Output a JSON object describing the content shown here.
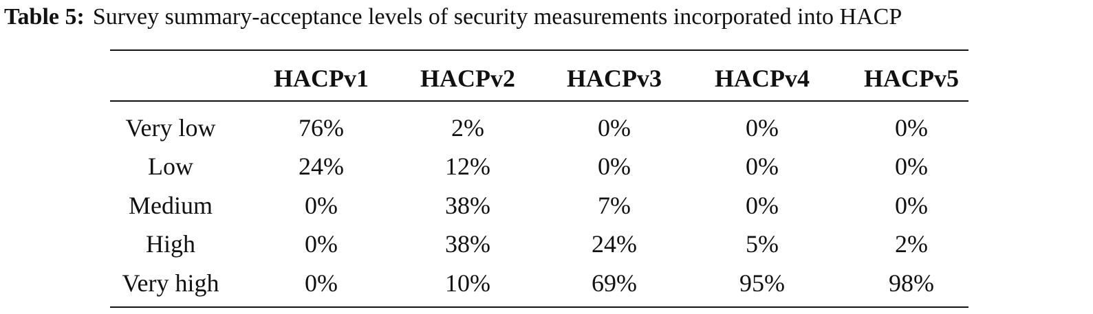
{
  "caption": {
    "label": "Table 5:",
    "text": "Survey summary-acceptance levels of security measurements incorporated into HACP"
  },
  "table": {
    "columns": [
      "HACPv1",
      "HACPv2",
      "HACPv3",
      "HACPv4",
      "HACPv5"
    ],
    "rows": [
      {
        "label": "Very low",
        "cells": [
          "76%",
          "2%",
          "0%",
          "0%",
          "0%"
        ]
      },
      {
        "label": "Low",
        "cells": [
          "24%",
          "12%",
          "0%",
          "0%",
          "0%"
        ]
      },
      {
        "label": "Medium",
        "cells": [
          "0%",
          "38%",
          "7%",
          "0%",
          "0%"
        ]
      },
      {
        "label": "High",
        "cells": [
          "0%",
          "38%",
          "24%",
          "5%",
          "2%"
        ]
      },
      {
        "label": "Very high",
        "cells": [
          "0%",
          "10%",
          "69%",
          "95%",
          "98%"
        ]
      }
    ]
  }
}
